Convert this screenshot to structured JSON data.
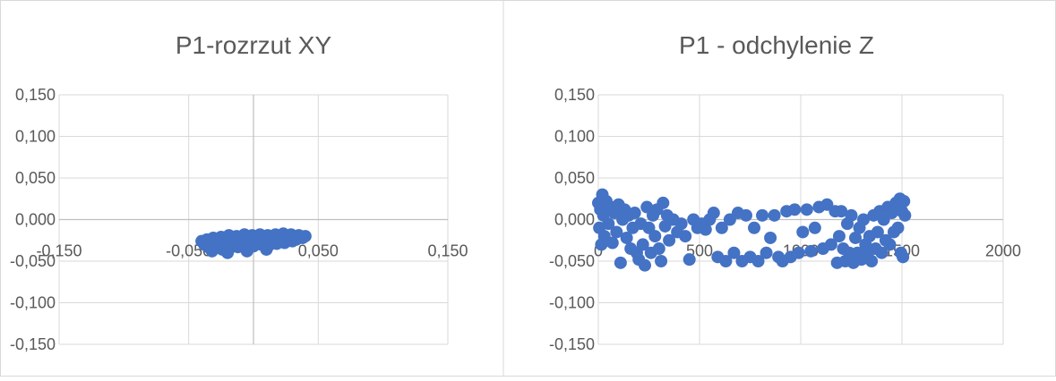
{
  "colors": {
    "series": "#4472C4",
    "grid": "#D9D9D9",
    "axis": "#BFBFBF",
    "text": "#595959",
    "border": "#D9D9D9"
  },
  "chart_data": [
    {
      "type": "scatter",
      "title": "P1-rozrzut XY",
      "xlim": [
        -0.15,
        0.15
      ],
      "ylim": [
        -0.15,
        0.15
      ],
      "x_ticks": [
        "-0,150",
        "-0,050",
        "0,050",
        "0,150"
      ],
      "x_tick_values": [
        -0.15,
        -0.05,
        0.05,
        0.15
      ],
      "y_ticks": [
        "0,150",
        "0,100",
        "0,050",
        "0,000",
        "-0,050",
        "-0,100",
        "-0,150"
      ],
      "y_tick_values": [
        0.15,
        0.1,
        0.05,
        0.0,
        -0.05,
        -0.1,
        -0.15
      ],
      "grid": "horizontal+vertical",
      "legend": "none",
      "series": [
        {
          "color": "#4472C4",
          "points": [
            [
              -0.04,
              -0.026
            ],
            [
              -0.038,
              -0.03
            ],
            [
              -0.036,
              -0.024
            ],
            [
              -0.035,
              -0.033
            ],
            [
              -0.033,
              -0.028
            ],
            [
              -0.031,
              -0.022
            ],
            [
              -0.03,
              -0.035
            ],
            [
              -0.028,
              -0.027
            ],
            [
              -0.027,
              -0.031
            ],
            [
              -0.025,
              -0.021
            ],
            [
              -0.024,
              -0.036
            ],
            [
              -0.022,
              -0.025
            ],
            [
              -0.021,
              -0.03
            ],
            [
              -0.019,
              -0.019
            ],
            [
              -0.018,
              -0.034
            ],
            [
              -0.016,
              -0.024
            ],
            [
              -0.015,
              -0.029
            ],
            [
              -0.013,
              -0.02
            ],
            [
              -0.012,
              -0.033
            ],
            [
              -0.01,
              -0.022
            ],
            [
              -0.009,
              -0.027
            ],
            [
              -0.007,
              -0.018
            ],
            [
              -0.006,
              -0.031
            ],
            [
              -0.004,
              -0.023
            ],
            [
              -0.003,
              -0.028
            ],
            [
              -0.001,
              -0.019
            ],
            [
              0.0,
              -0.032
            ],
            [
              0.002,
              -0.021
            ],
            [
              0.003,
              -0.026
            ],
            [
              0.005,
              -0.018
            ],
            [
              0.006,
              -0.03
            ],
            [
              0.008,
              -0.022
            ],
            [
              0.009,
              -0.027
            ],
            [
              0.011,
              -0.019
            ],
            [
              0.012,
              -0.031
            ],
            [
              0.014,
              -0.021
            ],
            [
              0.015,
              -0.025
            ],
            [
              0.017,
              -0.018
            ],
            [
              0.018,
              -0.029
            ],
            [
              0.02,
              -0.02
            ],
            [
              0.021,
              -0.024
            ],
            [
              0.023,
              -0.017
            ],
            [
              0.024,
              -0.028
            ],
            [
              0.026,
              -0.02
            ],
            [
              0.027,
              -0.023
            ],
            [
              0.029,
              -0.018
            ],
            [
              0.03,
              -0.026
            ],
            [
              0.032,
              -0.021
            ],
            [
              0.033,
              -0.024
            ],
            [
              0.035,
              -0.019
            ],
            [
              0.038,
              -0.022
            ],
            [
              0.04,
              -0.02
            ],
            [
              -0.02,
              -0.04
            ],
            [
              -0.005,
              -0.038
            ],
            [
              0.01,
              -0.036
            ],
            [
              -0.032,
              -0.038
            ]
          ]
        }
      ]
    },
    {
      "type": "scatter",
      "title": "P1 - odchylenie Z",
      "xlim": [
        0,
        2000
      ],
      "ylim": [
        -0.15,
        0.15
      ],
      "x_ticks": [
        "0",
        "500",
        "1000",
        "1500",
        "2000"
      ],
      "x_tick_values": [
        0,
        500,
        1000,
        1500,
        2000
      ],
      "y_ticks": [
        "0,150",
        "0,100",
        "0,050",
        "0,000",
        "-0,050",
        "-0,100",
        "-0,150"
      ],
      "y_tick_values": [
        0.15,
        0.1,
        0.05,
        0.0,
        -0.05,
        -0.1,
        -0.15
      ],
      "grid": "horizontal+vertical",
      "legend": "none",
      "series": [
        {
          "color": "#4472C4",
          "points": [
            [
              0,
              0.02
            ],
            [
              5,
              -0.01
            ],
            [
              10,
              0.012
            ],
            [
              15,
              -0.03
            ],
            [
              20,
              0.03
            ],
            [
              25,
              0.005
            ],
            [
              30,
              -0.02
            ],
            [
              40,
              0.022
            ],
            [
              50,
              -0.005
            ],
            [
              60,
              0.015
            ],
            [
              70,
              -0.028
            ],
            [
              80,
              0.008
            ],
            [
              90,
              -0.015
            ],
            [
              100,
              0.018
            ],
            [
              110,
              -0.052
            ],
            [
              120,
              0.0
            ],
            [
              130,
              0.012
            ],
            [
              140,
              -0.022
            ],
            [
              150,
              0.005
            ],
            [
              160,
              -0.035
            ],
            [
              170,
              -0.01
            ],
            [
              180,
              0.008
            ],
            [
              190,
              -0.04
            ],
            [
              200,
              -0.048
            ],
            [
              210,
              -0.005
            ],
            [
              220,
              -0.03
            ],
            [
              230,
              -0.055
            ],
            [
              240,
              0.015
            ],
            [
              250,
              -0.01
            ],
            [
              260,
              -0.04
            ],
            [
              270,
              0.005
            ],
            [
              280,
              -0.02
            ],
            [
              290,
              0.012
            ],
            [
              300,
              -0.035
            ],
            [
              310,
              -0.05
            ],
            [
              320,
              0.02
            ],
            [
              330,
              -0.008
            ],
            [
              340,
              0.005
            ],
            [
              350,
              -0.025
            ],
            [
              370,
              0.0
            ],
            [
              390,
              -0.015
            ],
            [
              410,
              -0.005
            ],
            [
              430,
              -0.02
            ],
            [
              450,
              -0.048
            ],
            [
              470,
              0.0
            ],
            [
              490,
              -0.01
            ],
            [
              510,
              -0.005
            ],
            [
              530,
              -0.012
            ],
            [
              550,
              0.0
            ],
            [
              570,
              0.008
            ],
            [
              590,
              -0.045
            ],
            [
              610,
              -0.01
            ],
            [
              630,
              -0.05
            ],
            [
              650,
              0.0
            ],
            [
              670,
              -0.04
            ],
            [
              690,
              0.008
            ],
            [
              710,
              -0.05
            ],
            [
              730,
              0.005
            ],
            [
              750,
              -0.045
            ],
            [
              770,
              -0.01
            ],
            [
              790,
              -0.05
            ],
            [
              810,
              0.005
            ],
            [
              830,
              -0.04
            ],
            [
              850,
              -0.022
            ],
            [
              870,
              0.005
            ],
            [
              890,
              -0.045
            ],
            [
              910,
              -0.05
            ],
            [
              930,
              0.01
            ],
            [
              950,
              -0.045
            ],
            [
              970,
              0.012
            ],
            [
              990,
              -0.04
            ],
            [
              1010,
              -0.015
            ],
            [
              1030,
              0.012
            ],
            [
              1050,
              -0.038
            ],
            [
              1070,
              -0.01
            ],
            [
              1090,
              0.015
            ],
            [
              1110,
              -0.035
            ],
            [
              1130,
              0.018
            ],
            [
              1150,
              -0.03
            ],
            [
              1170,
              0.01
            ],
            [
              1180,
              -0.052
            ],
            [
              1190,
              -0.02
            ],
            [
              1200,
              0.01
            ],
            [
              1210,
              -0.035
            ],
            [
              1220,
              -0.05
            ],
            [
              1230,
              -0.005
            ],
            [
              1240,
              -0.04
            ],
            [
              1250,
              0.005
            ],
            [
              1260,
              -0.052
            ],
            [
              1270,
              -0.022
            ],
            [
              1280,
              -0.04
            ],
            [
              1290,
              -0.01
            ],
            [
              1300,
              -0.048
            ],
            [
              1310,
              0.0
            ],
            [
              1320,
              -0.03
            ],
            [
              1330,
              -0.042
            ],
            [
              1340,
              -0.02
            ],
            [
              1350,
              -0.05
            ],
            [
              1360,
              0.005
            ],
            [
              1370,
              -0.035
            ],
            [
              1380,
              -0.015
            ],
            [
              1390,
              0.01
            ],
            [
              1400,
              -0.04
            ],
            [
              1410,
              0.0
            ],
            [
              1420,
              -0.025
            ],
            [
              1430,
              0.015
            ],
            [
              1440,
              -0.03
            ],
            [
              1450,
              0.008
            ],
            [
              1460,
              -0.015
            ],
            [
              1470,
              0.02
            ],
            [
              1480,
              -0.01
            ],
            [
              1490,
              0.025
            ],
            [
              1495,
              -0.04
            ],
            [
              1500,
              0.01
            ],
            [
              1505,
              -0.045
            ],
            [
              1510,
              0.022
            ],
            [
              1515,
              0.005
            ]
          ]
        }
      ]
    }
  ]
}
